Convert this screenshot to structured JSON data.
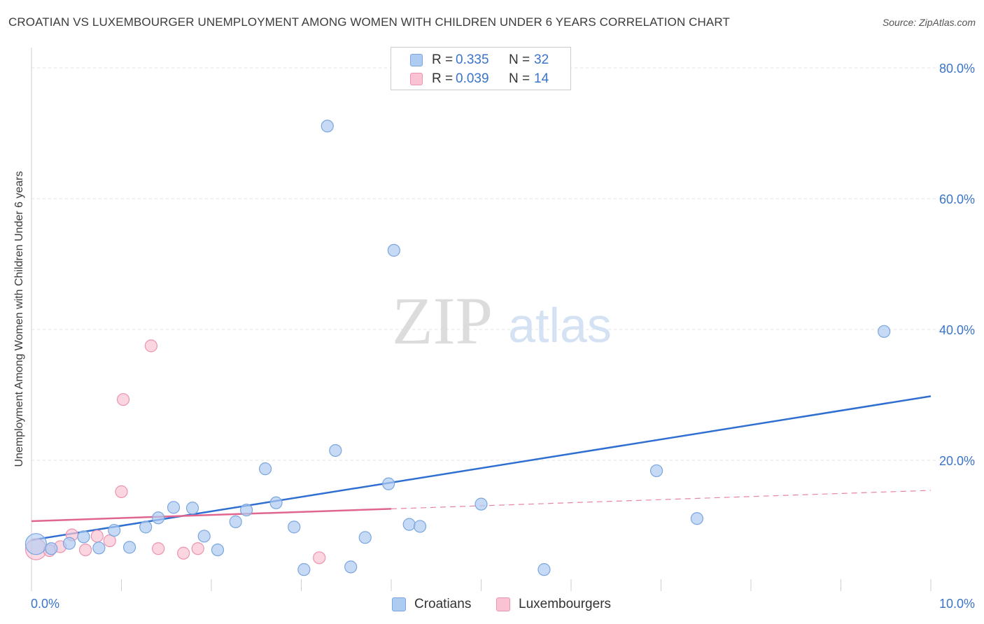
{
  "header": {
    "title": "CROATIAN VS LUXEMBOURGER UNEMPLOYMENT AMONG WOMEN WITH CHILDREN UNDER 6 YEARS CORRELATION CHART",
    "source": "Source: ZipAtlas.com"
  },
  "watermark": {
    "zip": "ZIP",
    "atlas": "atlas"
  },
  "legend": {
    "rows": [
      {
        "r_label": "R =",
        "r_value": "0.335",
        "n_label": "N =",
        "n_value": "32",
        "color": "#aecbf2",
        "border": "#7aa6de"
      },
      {
        "r_label": "R =",
        "r_value": "0.039",
        "n_label": "N =",
        "n_value": "14",
        "color": "#f9c3d3",
        "border": "#ec94b0"
      }
    ]
  },
  "bottom_legend": [
    {
      "label": "Croatians",
      "color": "#aecbf2",
      "border": "#7aa6de"
    },
    {
      "label": "Luxembourgers",
      "color": "#f9c3d3",
      "border": "#ec94b0"
    }
  ],
  "chart_data": {
    "type": "scatter",
    "title": "CROATIAN VS LUXEMBOURGER UNEMPLOYMENT AMONG WOMEN WITH CHILDREN UNDER 6 YEARS CORRELATION CHART",
    "xlabel": "",
    "ylabel": "Unemployment Among Women with Children Under 6 years",
    "xlim": [
      0,
      10
    ],
    "ylim": [
      0,
      80
    ],
    "x_tick_labels": [
      "0.0%",
      "10.0%"
    ],
    "y_ticks": [
      20,
      40,
      60,
      80
    ],
    "y_tick_labels": [
      "20.0%",
      "40.0%",
      "60.0%",
      "80.0%"
    ],
    "grid": true,
    "series": [
      {
        "name": "Croatians",
        "color": "#aecbf2",
        "stroke": "#7aa6de",
        "line_color": "#2f6fd1",
        "r": 0.335,
        "n": 32,
        "trend": {
          "x": [
            0,
            10
          ],
          "y": [
            7.8,
            29.8
          ]
        },
        "points": [
          {
            "x": 0.05,
            "y": 7.2,
            "big": true
          },
          {
            "x": 0.22,
            "y": 6.5
          },
          {
            "x": 0.42,
            "y": 7.3
          },
          {
            "x": 0.58,
            "y": 8.3
          },
          {
            "x": 0.75,
            "y": 6.6
          },
          {
            "x": 0.92,
            "y": 9.3
          },
          {
            "x": 1.09,
            "y": 6.7
          },
          {
            "x": 1.27,
            "y": 9.8
          },
          {
            "x": 1.41,
            "y": 11.2
          },
          {
            "x": 1.58,
            "y": 12.8
          },
          {
            "x": 1.79,
            "y": 12.7
          },
          {
            "x": 1.92,
            "y": 8.4
          },
          {
            "x": 2.07,
            "y": 6.3
          },
          {
            "x": 2.27,
            "y": 10.6
          },
          {
            "x": 2.39,
            "y": 12.4
          },
          {
            "x": 2.6,
            "y": 18.7
          },
          {
            "x": 2.72,
            "y": 13.5
          },
          {
            "x": 2.92,
            "y": 9.8
          },
          {
            "x": 3.03,
            "y": 3.3
          },
          {
            "x": 3.29,
            "y": 71.1
          },
          {
            "x": 3.38,
            "y": 21.5
          },
          {
            "x": 3.55,
            "y": 3.7
          },
          {
            "x": 3.71,
            "y": 8.2
          },
          {
            "x": 3.97,
            "y": 16.4
          },
          {
            "x": 4.03,
            "y": 52.1
          },
          {
            "x": 4.2,
            "y": 10.2
          },
          {
            "x": 4.32,
            "y": 9.9
          },
          {
            "x": 5.0,
            "y": 13.3
          },
          {
            "x": 5.7,
            "y": 3.3
          },
          {
            "x": 6.95,
            "y": 18.4
          },
          {
            "x": 7.4,
            "y": 11.1
          },
          {
            "x": 9.48,
            "y": 39.7
          }
        ]
      },
      {
        "name": "Luxembourgers",
        "color": "#f9c3d3",
        "stroke": "#ec94b0",
        "line_color": "#e0668e",
        "r": 0.039,
        "n": 14,
        "trend": {
          "x": [
            0,
            10
          ],
          "y": [
            10.7,
            15.4
          ],
          "solid_until": 4.0
        },
        "points": [
          {
            "x": 0.05,
            "y": 6.4,
            "big": true
          },
          {
            "x": 0.2,
            "y": 6.2
          },
          {
            "x": 0.32,
            "y": 6.8
          },
          {
            "x": 0.45,
            "y": 8.6
          },
          {
            "x": 0.6,
            "y": 6.3
          },
          {
            "x": 0.73,
            "y": 8.4
          },
          {
            "x": 0.87,
            "y": 7.7
          },
          {
            "x": 1.02,
            "y": 29.3
          },
          {
            "x": 1.0,
            "y": 15.2
          },
          {
            "x": 1.33,
            "y": 37.5
          },
          {
            "x": 1.41,
            "y": 6.5
          },
          {
            "x": 1.69,
            "y": 5.8
          },
          {
            "x": 1.85,
            "y": 6.5
          },
          {
            "x": 3.2,
            "y": 5.1
          }
        ]
      }
    ]
  }
}
